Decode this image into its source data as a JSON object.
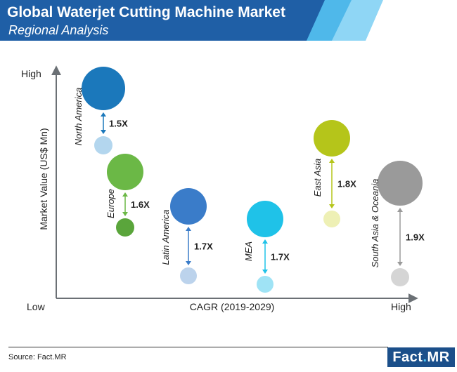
{
  "header": {
    "title": "Global Waterjet Cutting Machine Market",
    "subtitle": "Regional Analysis"
  },
  "footer": {
    "source": "Source: Fact.MR",
    "logo_text": "Fact.MR"
  },
  "colors": {
    "banner_dark": "#1f5fa6",
    "banner_light1": "#4fb8ea",
    "banner_light2": "#8fd6f5",
    "axis": "#6b7075"
  },
  "chart_data": {
    "type": "bubble-comparison",
    "ylabel": "Market Value (US$ Mn)",
    "xlabel": "CAGR (2019-2029)",
    "y_high_label": "High",
    "x_low_label": "Low",
    "x_high_label": "High",
    "regions": [
      {
        "name": "North America",
        "multiplier": "1.5X",
        "color_2019": "#b3d6ee",
        "color_2029": "#1b78bb",
        "value_2029": 1.5,
        "value_2019": 1.0
      },
      {
        "name": "Europe",
        "multiplier": "1.6X",
        "color_2019": "#5aa53b",
        "color_2029": "#6bb846",
        "value_2029": 1.6,
        "value_2019": 1.0
      },
      {
        "name": "Latin America",
        "multiplier": "1.7X",
        "color_2019": "#bcd3ec",
        "color_2029": "#3a7cc9",
        "value_2029": 1.7,
        "value_2019": 1.0
      },
      {
        "name": "MEA",
        "multiplier": "1.7X",
        "color_2019": "#9fe3f5",
        "color_2029": "#1fc2e8",
        "value_2029": 1.7,
        "value_2019": 1.0
      },
      {
        "name": "East Asia",
        "multiplier": "1.8X",
        "color_2019": "#eef0b5",
        "color_2029": "#b5c51a",
        "value_2029": 1.8,
        "value_2019": 1.0
      },
      {
        "name": "South Asia & Oceania",
        "multiplier": "1.9X",
        "color_2019": "#d5d5d5",
        "color_2029": "#9a9a9a",
        "value_2029": 1.9,
        "value_2019": 1.0
      }
    ]
  }
}
